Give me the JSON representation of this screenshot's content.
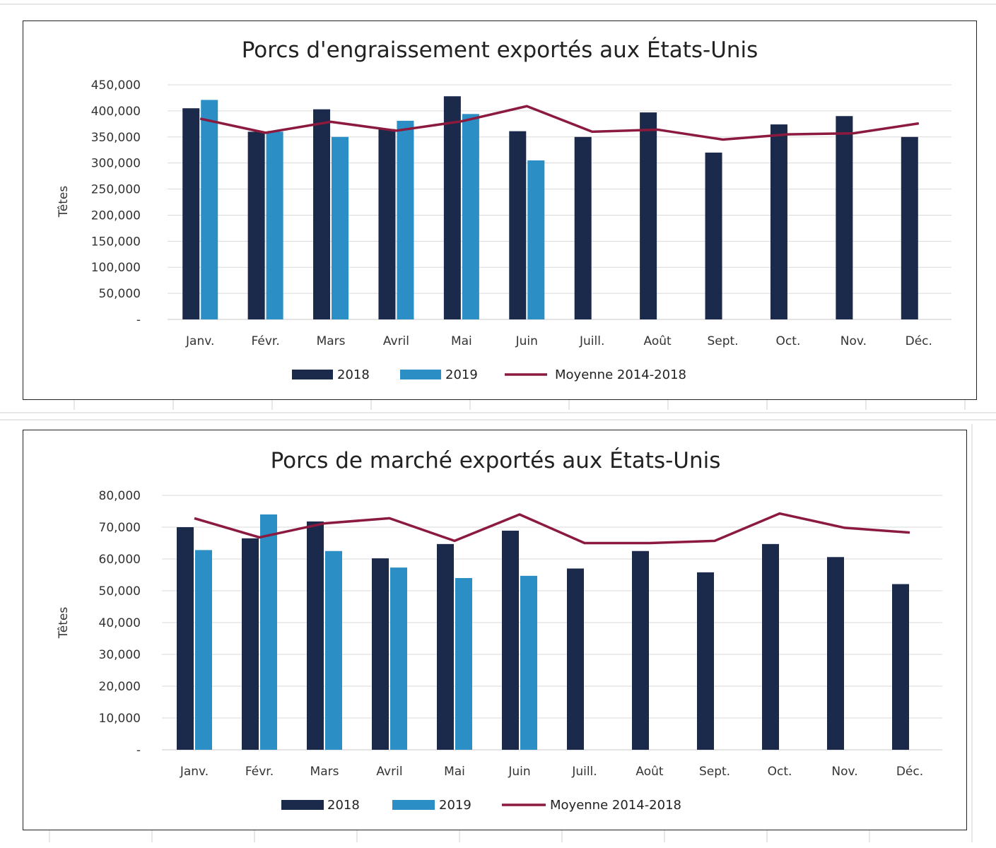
{
  "chart_data": [
    {
      "type": "bar",
      "title": "Porcs d'engraissement exportés aux États-Unis",
      "ylabel": "Têtes",
      "xlabel": "",
      "ylim": [
        0,
        450000
      ],
      "yticks": [
        "-",
        "50,000",
        "100,000",
        "150,000",
        "200,000",
        "250,000",
        "300,000",
        "350,000",
        "400,000",
        "450,000"
      ],
      "categories": [
        "Janv.",
        "Févr.",
        "Mars",
        "Avril",
        "Mai",
        "Juin",
        "Juill.",
        "Août",
        "Sept.",
        "Oct.",
        "Nov.",
        "Déc."
      ],
      "series": [
        {
          "name": "2018",
          "type": "bar",
          "color": "#1b2a4a",
          "values": [
            405000,
            360000,
            403000,
            365000,
            428000,
            361000,
            350000,
            397000,
            320000,
            374000,
            390000,
            350000
          ]
        },
        {
          "name": "2019",
          "type": "bar",
          "color": "#2b8ec4",
          "values": [
            421000,
            360000,
            350000,
            381000,
            394000,
            305000,
            null,
            null,
            null,
            null,
            null,
            null
          ]
        },
        {
          "name": "Moyenne 2014-2018",
          "type": "line",
          "color": "#8b1a3e",
          "values": [
            385000,
            358000,
            379000,
            362000,
            380000,
            409000,
            360000,
            364000,
            345000,
            355000,
            357000,
            376000
          ]
        }
      ],
      "legend": {
        "position": "bottom",
        "labels": [
          "2018",
          "2019",
          "Moyenne 2014-2018"
        ]
      },
      "grid": true
    },
    {
      "type": "bar",
      "title": "Porcs de marché exportés aux États-Unis",
      "ylabel": "Têtes",
      "xlabel": "",
      "ylim": [
        0,
        80000
      ],
      "yticks": [
        "-",
        "10,000",
        "20,000",
        "30,000",
        "40,000",
        "50,000",
        "60,000",
        "70,000",
        "80,000"
      ],
      "categories": [
        "Janv.",
        "Févr.",
        "Mars",
        "Avril",
        "Mai",
        "Juin",
        "Juill.",
        "Août",
        "Sept.",
        "Oct.",
        "Nov.",
        "Déc."
      ],
      "series": [
        {
          "name": "2018",
          "type": "bar",
          "color": "#1b2a4a",
          "values": [
            70000,
            66500,
            71800,
            60200,
            64700,
            68900,
            57000,
            62500,
            55800,
            64700,
            60600,
            52100
          ]
        },
        {
          "name": "2019",
          "type": "bar",
          "color": "#2b8ec4",
          "values": [
            62800,
            74000,
            62500,
            57300,
            54000,
            54700,
            null,
            null,
            null,
            null,
            null,
            null
          ]
        },
        {
          "name": "Moyenne 2014-2018",
          "type": "line",
          "color": "#8b1a3e",
          "values": [
            72800,
            66800,
            71200,
            72800,
            65700,
            74000,
            65000,
            65000,
            65700,
            74300,
            69800,
            68300
          ]
        }
      ],
      "legend": {
        "position": "bottom",
        "labels": [
          "2018",
          "2019",
          "Moyenne 2014-2018"
        ]
      },
      "grid": true
    }
  ]
}
